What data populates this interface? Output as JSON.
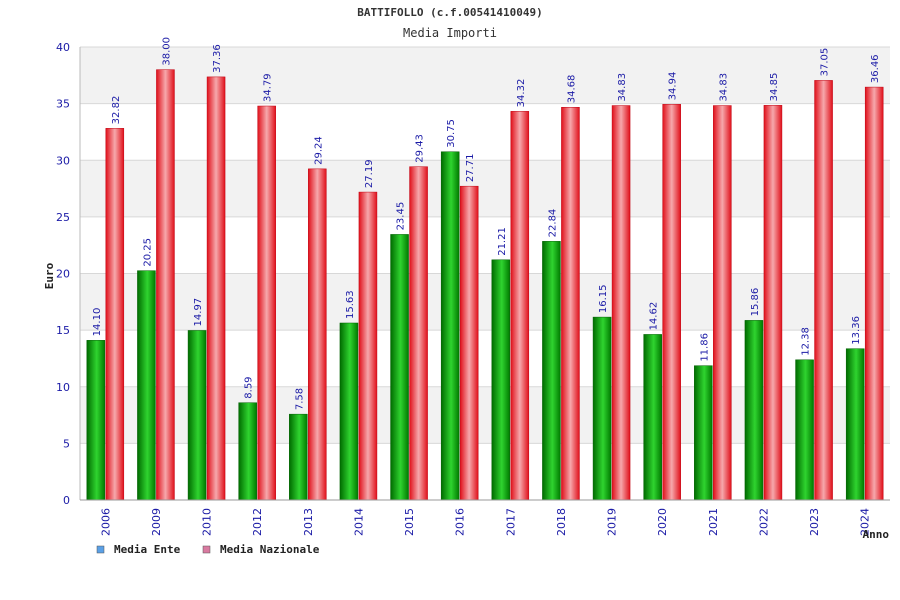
{
  "colors": {
    "series_ente": "#00a000",
    "series_nazionale": "#e8232b",
    "legend_ente": "#5aa0e6",
    "legend_nazionale": "#d97aa0",
    "band": "#f2f2f2",
    "grid": "#d8d8d8"
  },
  "chart_data": {
    "type": "bar",
    "title": "BATTIFOLLO (c.f.00541410049)",
    "subtitle": "Media Importi",
    "xlabel": "Anno",
    "ylabel": "Euro",
    "ylim": [
      0,
      40
    ],
    "yticks": [
      0,
      5,
      10,
      15,
      20,
      25,
      30,
      35,
      40
    ],
    "grid": true,
    "legend_position": "bottom-left",
    "categories": [
      "2006",
      "2009",
      "2010",
      "2012",
      "2013",
      "2014",
      "2015",
      "2016",
      "2017",
      "2018",
      "2019",
      "2020",
      "2021",
      "2022",
      "2023",
      "2024"
    ],
    "series": [
      {
        "name": "Media Ente",
        "values": [
          14.1,
          20.25,
          14.97,
          8.59,
          7.58,
          15.63,
          23.45,
          30.75,
          21.21,
          22.84,
          16.15,
          14.62,
          11.86,
          15.86,
          12.38,
          13.36
        ],
        "labels": [
          "14.10",
          "20.25",
          "14.97",
          "8.59",
          "7.58",
          "15.63",
          "23.45",
          "30.75",
          "21.21",
          "22.84",
          "16.15",
          "14.62",
          "11.86",
          "15.86",
          "12.38",
          "13.36"
        ]
      },
      {
        "name": "Media Nazionale",
        "values": [
          32.82,
          38.0,
          37.36,
          34.79,
          29.24,
          27.19,
          29.43,
          27.71,
          34.32,
          34.68,
          34.83,
          34.94,
          34.83,
          34.85,
          37.05,
          36.46
        ],
        "labels": [
          "32.82",
          "38.00",
          "37.36",
          "34.79",
          "29.24",
          "27.19",
          "29.43",
          "27.71",
          "34.32",
          "34.68",
          "34.83",
          "34.94",
          "34.83",
          "34.85",
          "37.05",
          "36.46"
        ]
      }
    ]
  }
}
